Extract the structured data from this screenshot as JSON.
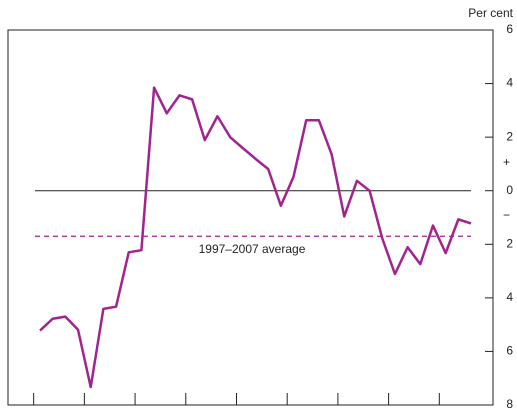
{
  "chart_data": {
    "type": "line",
    "y_unit_label": "Per cent",
    "annotations": {
      "average_label": "1997–2007 average",
      "sign_plus": "+",
      "sign_minus": "−"
    },
    "categories": [
      null,
      null,
      null,
      null,
      null,
      null,
      null,
      null,
      null,
      null,
      null,
      null,
      null,
      null,
      null,
      null,
      null,
      null,
      null,
      null,
      null,
      null,
      null,
      null,
      null,
      null,
      null,
      null,
      null,
      null,
      null,
      null,
      null,
      null,
      null
    ],
    "series": [
      {
        "name": null,
        "color": "#a3238e",
        "values": [
          -5.22,
          -4.78,
          -4.7,
          -5.19,
          -7.33,
          -4.41,
          -4.33,
          -2.3,
          -2.22,
          3.85,
          2.89,
          3.56,
          3.41,
          1.89,
          2.78,
          2.0,
          1.59,
          1.19,
          0.81,
          -0.56,
          0.52,
          2.63,
          2.63,
          1.37,
          -0.96,
          0.37,
          0,
          -1.78,
          -3.11,
          -2.11,
          -2.74,
          -1.3,
          -2.33,
          -1.07,
          -1.22
        ]
      }
    ],
    "average": -1.7,
    "zero_line": 0,
    "ylim": [
      -8,
      6
    ],
    "yticks": [
      6,
      4,
      2,
      0,
      {
        "value": -2,
        "label": "2"
      },
      {
        "value": -4,
        "label": "4"
      },
      {
        "value": -6,
        "label": "6"
      },
      {
        "value": -8,
        "label": "8"
      }
    ],
    "grid": false
  }
}
